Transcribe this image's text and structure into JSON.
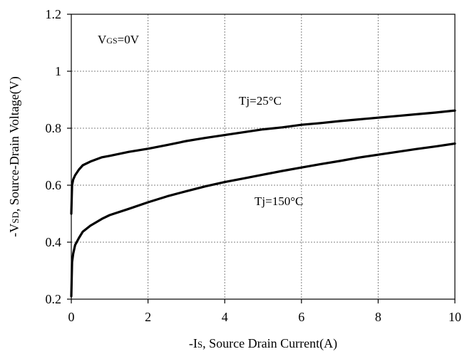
{
  "chart_data": {
    "type": "line",
    "xlabel_prefix": "-I",
    "xlabel_sub": "S",
    "xlabel_rest": ", Source Drain Current(A)",
    "ylabel_prefix": "-V",
    "ylabel_sub": "SD",
    "ylabel_rest": ", Source-Drain Voltage(V)",
    "xlim": [
      0,
      10
    ],
    "ylim": [
      0.2,
      1.2
    ],
    "x_ticks": [
      "0",
      "2",
      "4",
      "6",
      "8",
      "10"
    ],
    "y_ticks": [
      "0.2",
      "0.4",
      "0.6",
      "0.8",
      "1",
      "1.2"
    ],
    "grid": true,
    "annotations": {
      "vgs_prefix": "V",
      "vgs_sub": "GS",
      "vgs_rest": "=0V",
      "tj25": "Tj=25°C",
      "tj150": "Tj=150°C"
    },
    "series": [
      {
        "name": "Tj=25°C",
        "x": [
          0,
          0.02,
          0.05,
          0.1,
          0.2,
          0.3,
          0.5,
          0.8,
          1,
          1.5,
          2,
          2.5,
          3,
          3.5,
          4,
          4.5,
          5,
          5.5,
          6,
          6.5,
          7,
          7.5,
          8,
          8.5,
          9,
          9.5,
          10
        ],
        "y": [
          0.5,
          0.6,
          0.62,
          0.635,
          0.655,
          0.67,
          0.683,
          0.698,
          0.703,
          0.717,
          0.728,
          0.741,
          0.755,
          0.766,
          0.776,
          0.786,
          0.796,
          0.803,
          0.812,
          0.818,
          0.825,
          0.831,
          0.837,
          0.843,
          0.849,
          0.855,
          0.862
        ]
      },
      {
        "name": "Tj=150°C",
        "x": [
          0,
          0.02,
          0.05,
          0.1,
          0.2,
          0.3,
          0.5,
          0.8,
          1,
          1.5,
          2,
          2.5,
          3,
          3.5,
          4,
          4.5,
          5,
          5.5,
          6,
          6.5,
          7,
          7.5,
          8,
          8.5,
          9,
          9.5,
          10
        ],
        "y": [
          0.21,
          0.33,
          0.36,
          0.39,
          0.415,
          0.437,
          0.458,
          0.482,
          0.495,
          0.517,
          0.54,
          0.561,
          0.579,
          0.596,
          0.611,
          0.624,
          0.637,
          0.65,
          0.662,
          0.674,
          0.685,
          0.697,
          0.707,
          0.717,
          0.727,
          0.736,
          0.746
        ]
      }
    ]
  }
}
